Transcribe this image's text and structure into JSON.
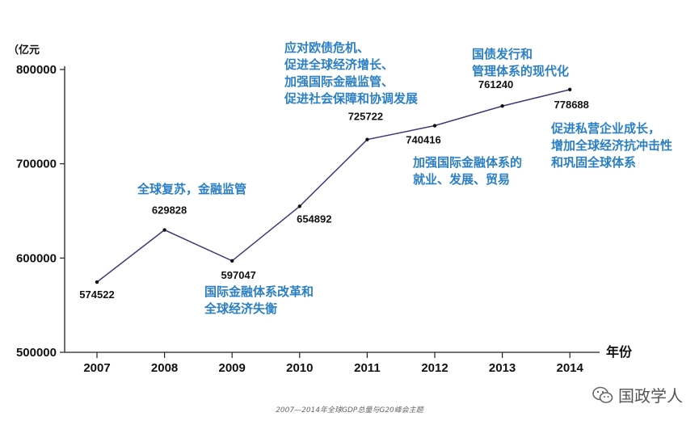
{
  "chart_data": {
    "type": "line",
    "x": [
      "2007",
      "2008",
      "2009",
      "2010",
      "2011",
      "2012",
      "2013",
      "2014"
    ],
    "values": [
      574522,
      629828,
      597047,
      654892,
      725722,
      740416,
      761240,
      778688
    ],
    "value_labels": [
      "574522",
      "629828",
      "597047",
      "654892",
      "725722",
      "740416",
      "761240",
      "778688"
    ],
    "ylim": [
      500000,
      800000
    ],
    "yticks": [
      500000,
      600000,
      700000,
      800000
    ],
    "ytick_labels": [
      "500000",
      "600000",
      "700000",
      "800000"
    ],
    "ylabel": "（亿元",
    "xlabel": "年份",
    "line_color": "#3a3a7a",
    "annotation_color": "#2b7fc4",
    "annotations": [
      {
        "year": "2008",
        "lines": [
          "全球复苏，金融监管"
        ]
      },
      {
        "year": "2009",
        "lines": [
          "国际金融体系改革和",
          "全球经济失衡"
        ]
      },
      {
        "year": "2011",
        "lines": [
          "应对欧债危机、",
          "促进全球经济增长、",
          "加强国际金融监管、",
          "促进社会保障和协调发展"
        ]
      },
      {
        "year": "2012",
        "lines": [
          "加强国际金融体系的",
          "就业、发展、贸易"
        ]
      },
      {
        "year": "2013",
        "lines": [
          "国债发行和",
          "管理体系的现代化"
        ]
      },
      {
        "year": "2014",
        "lines": [
          "促进私营企业成长，",
          "增加全球经济抗冲击性",
          "和巩固全球体系"
        ]
      }
    ]
  },
  "caption": "2007—2014年全球GDP总量与G20峰会主题",
  "watermark": {
    "text": "国政学人",
    "icon": "wechat-icon"
  }
}
